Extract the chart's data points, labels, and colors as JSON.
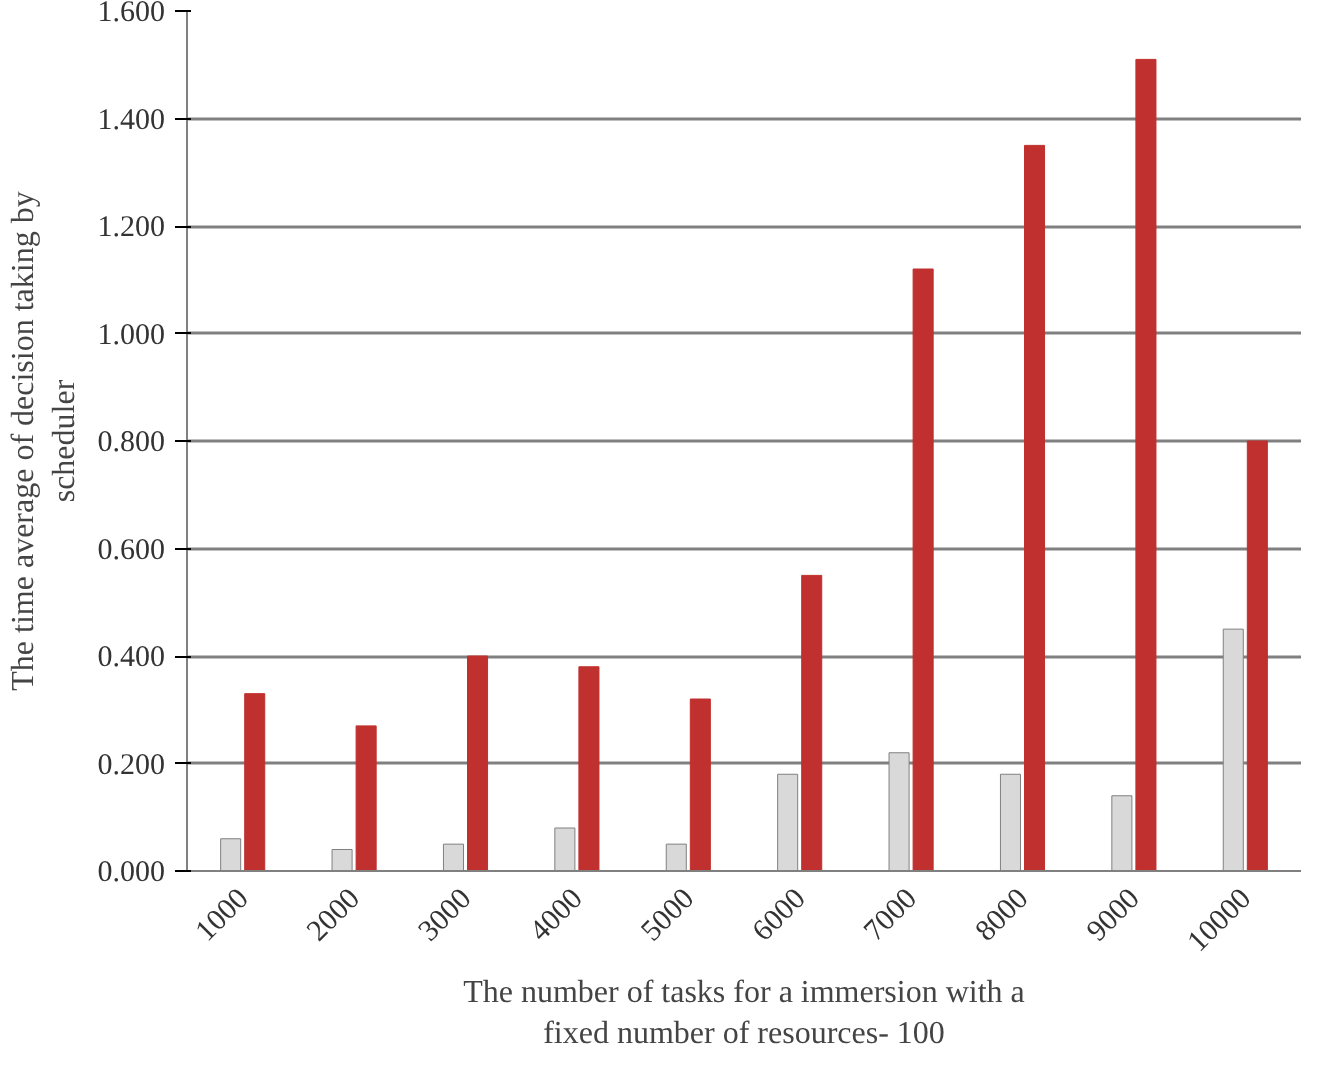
{
  "chart_data": {
    "type": "bar",
    "xlabel": "The number of tasks for a immersion with a\nfixed number of resources- 100",
    "ylabel": "The time average of decision taking by\nscheduler",
    "categories": [
      "1000",
      "2000",
      "3000",
      "4000",
      "5000",
      "6000",
      "7000",
      "8000",
      "9000",
      "10000"
    ],
    "series": [
      {
        "color": "#d9d9d9",
        "values": [
          0.06,
          0.04,
          0.05,
          0.08,
          0.05,
          0.18,
          0.22,
          0.18,
          0.14,
          0.45
        ]
      },
      {
        "color": "#c0302e",
        "values": [
          0.33,
          0.27,
          0.4,
          0.38,
          0.32,
          0.55,
          1.12,
          1.35,
          1.51,
          0.8
        ]
      }
    ],
    "ylim": [
      0,
      1.6
    ],
    "yticks": [
      {
        "value": 0,
        "label": "0.000"
      },
      {
        "value": 0.2,
        "label": "0.200"
      },
      {
        "value": 0.4,
        "label": "0.400"
      },
      {
        "value": 0.6,
        "label": "0.600"
      },
      {
        "value": 0.8,
        "label": "0.800"
      },
      {
        "value": 1.0,
        "label": "1.000"
      },
      {
        "value": 1.2,
        "label": "1.200"
      },
      {
        "value": 1.4,
        "label": "1.400"
      },
      {
        "value": 1.6,
        "label": "1.600"
      }
    ],
    "grid": "y"
  }
}
